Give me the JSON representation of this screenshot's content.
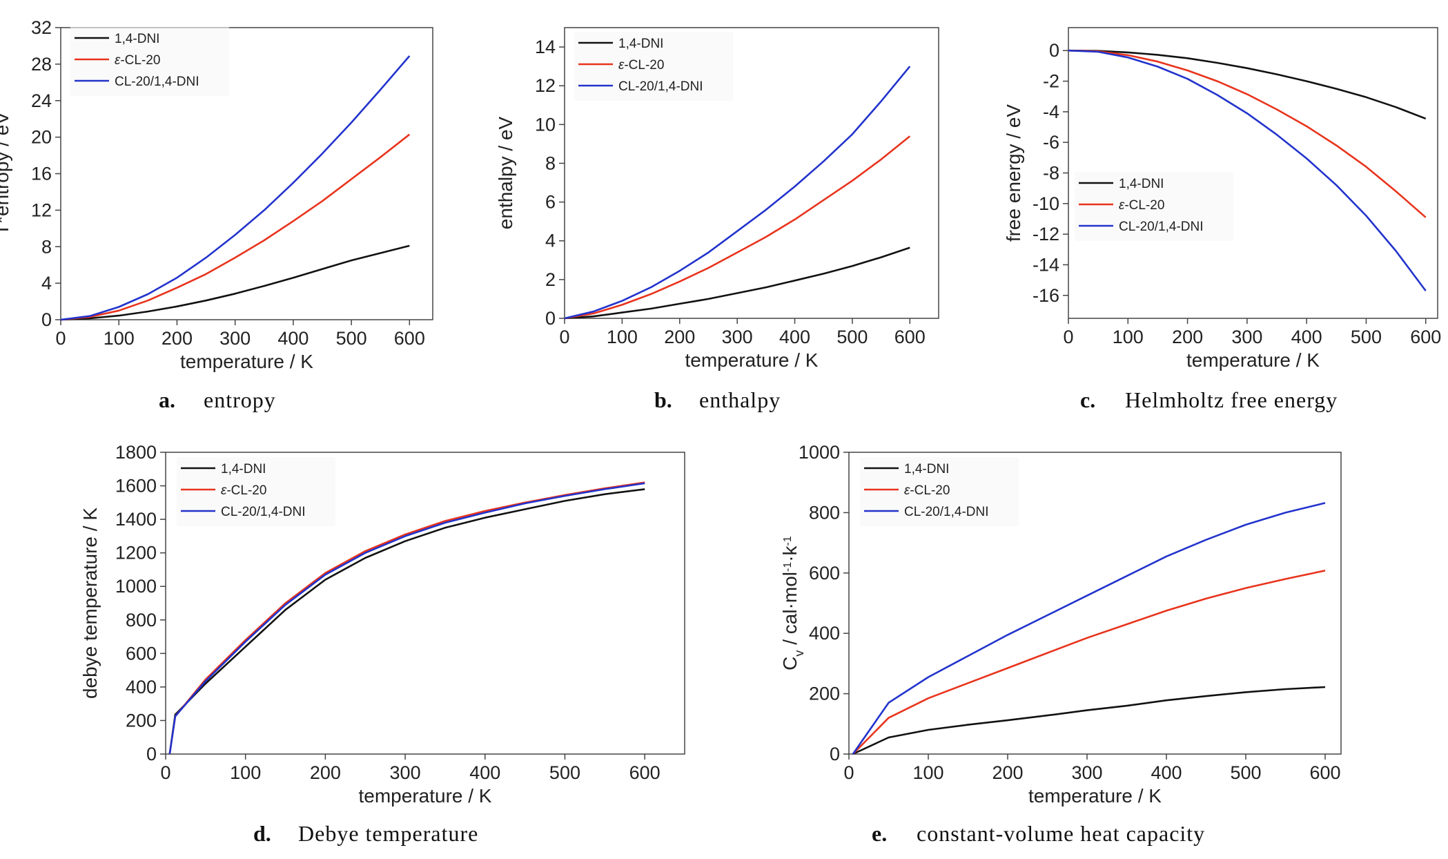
{
  "colors": {
    "1,4-DNI": "#111111",
    "ε-CL-20": "#e8331c",
    "CL-20/1,4-DNI": "#2233cc"
  },
  "chart_data": [
    {
      "id": "a",
      "type": "line",
      "caption_letter": "a.",
      "caption": "entropy",
      "xlabel": "temperature / K",
      "ylabel": "T*entropy / eV",
      "xlim": [
        0,
        640
      ],
      "ylim": [
        0,
        32
      ],
      "xticks": [
        0,
        100,
        200,
        300,
        400,
        500,
        600
      ],
      "yticks": [
        0,
        4,
        8,
        12,
        16,
        20,
        24,
        28,
        32
      ],
      "legend_position": "top-left",
      "x": [
        0,
        50,
        100,
        150,
        200,
        250,
        300,
        350,
        400,
        450,
        500,
        550,
        600
      ],
      "series": [
        {
          "name": "1,4-DNI",
          "values": [
            0,
            0.15,
            0.45,
            0.9,
            1.45,
            2.1,
            2.85,
            3.7,
            4.6,
            5.55,
            6.5,
            7.3,
            8.1
          ]
        },
        {
          "name": "ε-CL-20",
          "values": [
            0,
            0.3,
            1.0,
            2.1,
            3.5,
            5.0,
            6.8,
            8.7,
            10.8,
            13.0,
            15.4,
            17.8,
            20.3
          ]
        },
        {
          "name": "CL-20/1,4-DNI",
          "values": [
            0,
            0.4,
            1.4,
            2.8,
            4.6,
            6.8,
            9.3,
            12.0,
            15.0,
            18.2,
            21.6,
            25.2,
            28.9
          ]
        }
      ]
    },
    {
      "id": "b",
      "type": "line",
      "caption_letter": "b.",
      "caption": "enthalpy",
      "xlabel": "temperature / K",
      "ylabel": "enthalpy / eV",
      "xlim": [
        0,
        650
      ],
      "ylim": [
        0,
        15
      ],
      "xticks": [
        0,
        100,
        200,
        300,
        400,
        500,
        600
      ],
      "yticks": [
        0,
        2,
        4,
        6,
        8,
        10,
        12,
        14
      ],
      "legend_position": "top-left",
      "x": [
        0,
        50,
        100,
        150,
        200,
        250,
        300,
        350,
        400,
        450,
        500,
        550,
        600
      ],
      "series": [
        {
          "name": "1,4-DNI",
          "values": [
            0,
            0.1,
            0.3,
            0.5,
            0.75,
            1.0,
            1.3,
            1.6,
            1.95,
            2.3,
            2.7,
            3.15,
            3.65
          ]
        },
        {
          "name": "ε-CL-20",
          "values": [
            0,
            0.25,
            0.7,
            1.25,
            1.9,
            2.6,
            3.4,
            4.2,
            5.1,
            6.1,
            7.1,
            8.2,
            9.4
          ]
        },
        {
          "name": "CL-20/1,4-DNI",
          "values": [
            0,
            0.35,
            0.9,
            1.6,
            2.45,
            3.4,
            4.5,
            5.6,
            6.8,
            8.1,
            9.5,
            11.2,
            13.0
          ]
        }
      ]
    },
    {
      "id": "c",
      "type": "line",
      "caption_letter": "c.",
      "caption": "Helmholtz free energy",
      "xlabel": "temperature / K",
      "ylabel": "free energy / eV",
      "xlim": [
        0,
        620
      ],
      "ylim": [
        -17.5,
        1.5
      ],
      "xticks": [
        0,
        100,
        200,
        300,
        400,
        500,
        600
      ],
      "yticks": [
        0,
        -2,
        -4,
        -6,
        -8,
        -10,
        -12,
        -14,
        -16
      ],
      "legend_position": "center-left",
      "x": [
        0,
        50,
        100,
        150,
        200,
        250,
        300,
        350,
        400,
        450,
        500,
        550,
        600
      ],
      "series": [
        {
          "name": "1,4-DNI",
          "values": [
            0,
            -0.02,
            -0.12,
            -0.28,
            -0.5,
            -0.8,
            -1.15,
            -1.55,
            -2.0,
            -2.5,
            -3.05,
            -3.7,
            -4.45
          ]
        },
        {
          "name": "ε-CL-20",
          "values": [
            0,
            -0.05,
            -0.3,
            -0.72,
            -1.3,
            -2.0,
            -2.85,
            -3.85,
            -4.95,
            -6.2,
            -7.6,
            -9.2,
            -10.9
          ]
        },
        {
          "name": "CL-20/1,4-DNI",
          "values": [
            0,
            -0.08,
            -0.45,
            -1.05,
            -1.85,
            -2.9,
            -4.1,
            -5.5,
            -7.05,
            -8.8,
            -10.8,
            -13.1,
            -15.7
          ]
        }
      ]
    },
    {
      "id": "d",
      "type": "line",
      "caption_letter": "d.",
      "caption": "Debye temperature",
      "xlabel": "temperature / K",
      "ylabel": "debye temperature / K",
      "xlim": [
        0,
        650
      ],
      "ylim": [
        0,
        1800
      ],
      "xticks": [
        0,
        100,
        200,
        300,
        400,
        500,
        600
      ],
      "yticks": [
        0,
        200,
        400,
        600,
        800,
        1000,
        1200,
        1400,
        1600,
        1800
      ],
      "legend_position": "top-left",
      "x": [
        5,
        12,
        50,
        100,
        150,
        200,
        250,
        300,
        350,
        400,
        450,
        500,
        550,
        600
      ],
      "series": [
        {
          "name": "1,4-DNI",
          "values": [
            0,
            235,
            420,
            640,
            860,
            1040,
            1170,
            1270,
            1350,
            1410,
            1460,
            1510,
            1550,
            1580
          ]
        },
        {
          "name": "ε-CL-20",
          "values": [
            0,
            225,
            445,
            680,
            900,
            1080,
            1210,
            1310,
            1390,
            1450,
            1500,
            1545,
            1585,
            1620
          ]
        },
        {
          "name": "CL-20/1,4-DNI",
          "values": [
            0,
            225,
            435,
            670,
            890,
            1070,
            1200,
            1300,
            1380,
            1440,
            1495,
            1540,
            1580,
            1615
          ]
        }
      ]
    },
    {
      "id": "e",
      "type": "line",
      "caption_letter": "e.",
      "caption": "constant-volume heat capacity",
      "xlabel": "temperature / K",
      "ylabel": "Cv / cal·mol-1·k-1",
      "xlim": [
        0,
        620
      ],
      "ylim": [
        0,
        1000
      ],
      "xticks": [
        0,
        100,
        200,
        300,
        400,
        500,
        600
      ],
      "yticks": [
        0,
        200,
        400,
        600,
        800,
        1000
      ],
      "legend_position": "top-left",
      "x": [
        5,
        50,
        100,
        150,
        200,
        250,
        300,
        350,
        400,
        450,
        500,
        550,
        600
      ],
      "series": [
        {
          "name": "1,4-DNI",
          "values": [
            0,
            55,
            80,
            97,
            112,
            128,
            145,
            160,
            178,
            192,
            205,
            215,
            222
          ]
        },
        {
          "name": "ε-CL-20",
          "values": [
            0,
            120,
            185,
            235,
            285,
            335,
            385,
            430,
            475,
            515,
            550,
            580,
            608
          ]
        },
        {
          "name": "CL-20/1,4-DNI",
          "values": [
            0,
            170,
            255,
            325,
            395,
            460,
            525,
            590,
            655,
            710,
            760,
            800,
            832
          ]
        }
      ]
    }
  ]
}
